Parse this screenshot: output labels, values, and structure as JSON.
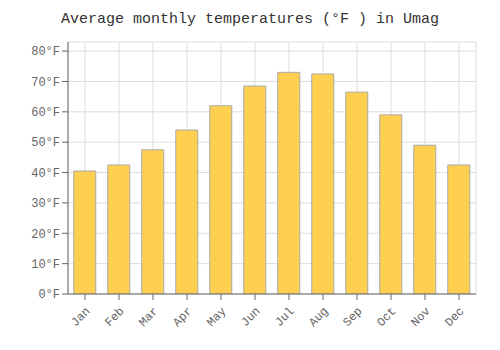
{
  "chart_data": {
    "type": "bar",
    "title": "Average monthly temperatures (°F ) in Umag",
    "categories": [
      "Jan",
      "Feb",
      "Mar",
      "Apr",
      "May",
      "Jun",
      "Jul",
      "Aug",
      "Sep",
      "Oct",
      "Nov",
      "Dec"
    ],
    "values": [
      40.5,
      42.5,
      47.5,
      54.0,
      62.0,
      68.5,
      73.0,
      72.5,
      66.5,
      59.0,
      49.0,
      42.5
    ],
    "color": "#FFD050",
    "ylim": [
      0,
      83
    ],
    "yticks": [
      {
        "value": 0,
        "label": "0°F"
      },
      {
        "value": 10,
        "label": "10°F"
      },
      {
        "value": 20,
        "label": "20°F"
      },
      {
        "value": 30,
        "label": "30°F"
      },
      {
        "value": 40,
        "label": "40°F"
      },
      {
        "value": 50,
        "label": "50°F"
      },
      {
        "value": 60,
        "label": "60°F"
      },
      {
        "value": 70,
        "label": "70°F"
      },
      {
        "value": 80,
        "label": "80°F"
      }
    ],
    "grid": true
  }
}
